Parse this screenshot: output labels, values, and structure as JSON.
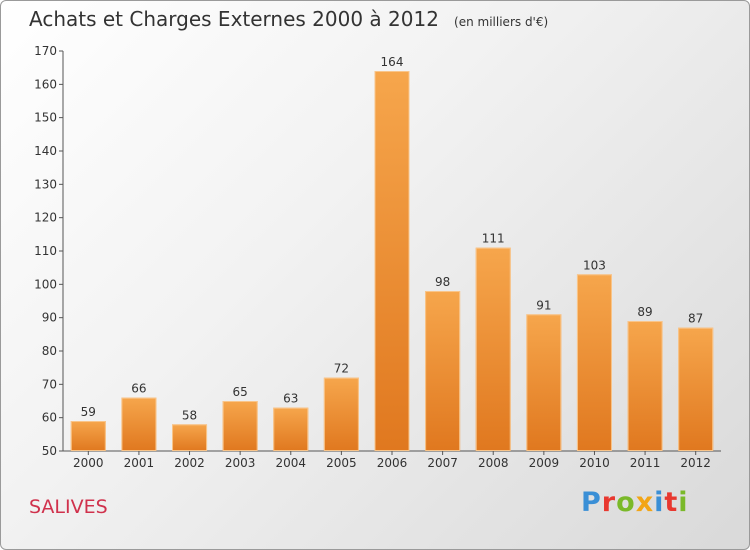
{
  "title": "Achats et Charges Externes 2000 à 2012",
  "unit": "(en milliers d'€)",
  "commune": "SALIVES",
  "logo": {
    "text": "Proxiti",
    "colors": [
      "#3a8fd6",
      "#e8382f",
      "#7ab929",
      "#f2a516",
      "#3a8fd6",
      "#e8382f",
      "#7ab929"
    ]
  },
  "colors": {
    "bar_light": "#f6a64c",
    "bar_dark": "#e0781f",
    "commune": "#d0314c"
  },
  "chart_data": {
    "type": "bar",
    "title": "Achats et Charges Externes 2000 à 2012",
    "categories": [
      "2000",
      "2001",
      "2002",
      "2003",
      "2004",
      "2005",
      "2006",
      "2007",
      "2008",
      "2009",
      "2010",
      "2011",
      "2012"
    ],
    "values": [
      59,
      66,
      58,
      65,
      63,
      72,
      164,
      98,
      111,
      91,
      103,
      89,
      87
    ],
    "ylim": [
      50,
      170
    ],
    "yticks": [
      50,
      60,
      70,
      80,
      90,
      100,
      110,
      120,
      130,
      140,
      150,
      160,
      170
    ],
    "grid": false,
    "data_labels": true
  }
}
